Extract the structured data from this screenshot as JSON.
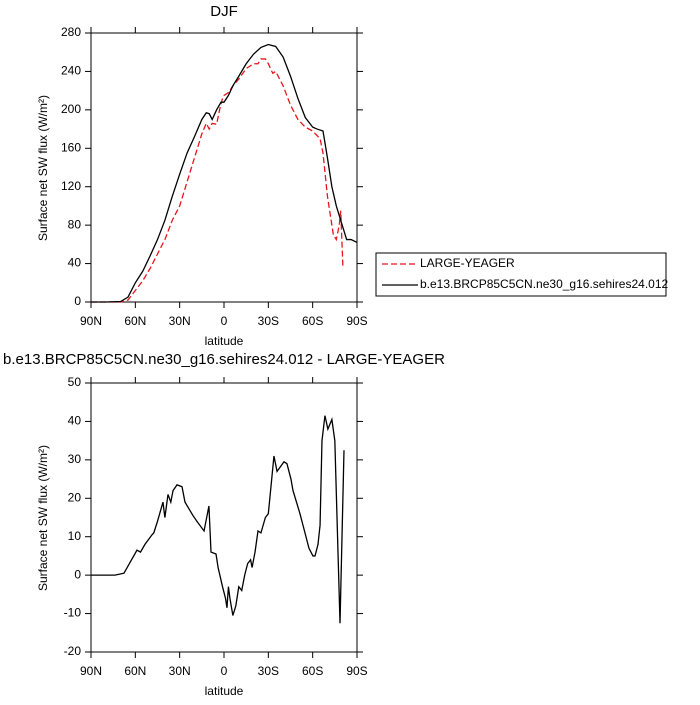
{
  "chart_data": [
    {
      "type": "line",
      "title": "DJF",
      "xlabel": "latitude",
      "ylabel": "Surface net SW flux (W/m²)",
      "xlim": [
        90,
        -90
      ],
      "ylim": [
        0,
        280
      ],
      "xticks": [
        {
          "value": 90,
          "label": "90N"
        },
        {
          "value": 60,
          "label": "60N"
        },
        {
          "value": 30,
          "label": "30N"
        },
        0,
        {
          "value": -30,
          "label": "30S"
        },
        {
          "value": -60,
          "label": "60S"
        },
        {
          "value": -90,
          "label": "90S"
        }
      ],
      "yticks": [
        0,
        40,
        80,
        120,
        160,
        200,
        240,
        280
      ],
      "legend": "outside right",
      "series": [
        {
          "name": "LARGE-YEAGER",
          "color": "#e8141c",
          "dash": "dashed",
          "x": [
            90,
            70,
            65,
            60,
            55,
            50,
            45,
            40,
            35,
            30,
            25,
            20,
            15,
            12,
            10,
            8,
            5,
            3,
            1,
            0,
            -3,
            -6,
            -10,
            -15,
            -20,
            -23,
            -25,
            -28,
            -30,
            -33,
            -35,
            -40,
            -45,
            -50,
            -55,
            -60,
            -65,
            -67,
            -70,
            -72,
            -74,
            -76,
            -78,
            -79,
            -80,
            -80.5
          ],
          "values": [
            0,
            0,
            2,
            12,
            22,
            35,
            50,
            65,
            85,
            100,
            125,
            150,
            175,
            186,
            180,
            186,
            185,
            200,
            212,
            215,
            218,
            225,
            232,
            243,
            248,
            248,
            253,
            253,
            248,
            238,
            240,
            225,
            205,
            190,
            182,
            178,
            170,
            155,
            110,
            90,
            70,
            65,
            80,
            95,
            55,
            35
          ]
        },
        {
          "name": "b.e13.BRCP85C5CN.ne30_g16.sehires24.012",
          "color": "#000000",
          "dash": "solid",
          "x": [
            90,
            80,
            70,
            65,
            60,
            55,
            50,
            45,
            40,
            35,
            30,
            25,
            20,
            15,
            12,
            10,
            8,
            5,
            2,
            0,
            -3,
            -6,
            -10,
            -15,
            -20,
            -25,
            -30,
            -35,
            -40,
            -45,
            -50,
            -55,
            -60,
            -63,
            -67,
            -70,
            -73,
            -76,
            -80,
            -83,
            -86,
            -90
          ],
          "values": [
            0,
            0,
            0.5,
            5,
            20,
            32,
            48,
            65,
            85,
            110,
            133,
            155,
            172,
            190,
            197,
            196,
            190,
            200,
            208,
            208,
            215,
            225,
            235,
            248,
            258,
            265,
            268,
            266,
            255,
            235,
            212,
            192,
            182,
            180,
            178,
            150,
            120,
            100,
            80,
            65,
            65,
            62
          ]
        }
      ]
    },
    {
      "type": "line",
      "title": "b.e13.BRCP85C5CN.ne30_g16.sehires24.012 - LARGE-YEAGER",
      "xlabel": "latitude",
      "ylabel": "Surface net SW flux (W/m²)",
      "xlim": [
        90,
        -90
      ],
      "ylim": [
        -20,
        50
      ],
      "xticks": [
        {
          "value": 90,
          "label": "90N"
        },
        {
          "value": 60,
          "label": "60N"
        },
        {
          "value": 30,
          "label": "30N"
        },
        0,
        {
          "value": -30,
          "label": "30S"
        },
        {
          "value": -60,
          "label": "60S"
        },
        {
          "value": -90,
          "label": "90S"
        }
      ],
      "yticks": [
        -20,
        -10,
        0,
        10,
        20,
        30,
        40,
        50
      ],
      "series": [
        {
          "color": "#000000",
          "dash": "solid",
          "x": [
            90,
            73.8,
            67.7,
            58.9,
            56.5,
            53.5,
            48.7,
            47.5,
            45,
            41.3,
            40,
            37.9,
            36,
            34.5,
            31.8,
            28.4,
            26.4,
            21,
            18.3,
            13.5,
            10.2,
            8.8,
            5.4,
            4,
            1,
            -1,
            -2,
            -3,
            -4,
            -6,
            -8,
            -10,
            -12,
            -14,
            -16,
            -18,
            -19,
            -21,
            -23,
            -25,
            -28,
            -30,
            -33.8,
            -35.9,
            -40.6,
            -42.6,
            -45.3,
            -46.7,
            -51.4,
            -54.8,
            -57.5,
            -60.2,
            -61.6,
            -63.6,
            -65,
            -66.3,
            -68.3,
            -70.3,
            -73,
            -75,
            -78.5,
            -81.2
          ],
          "values": [
            0,
            0,
            0.5,
            6.5,
            6,
            8,
            10.5,
            11,
            14,
            19,
            15,
            21,
            19,
            22,
            23.5,
            23,
            19,
            15.5,
            14,
            11.5,
            18,
            6,
            5.5,
            2,
            -3,
            -6,
            -8.5,
            -3,
            -6,
            -10.5,
            -8,
            -3,
            -4,
            0,
            3,
            4,
            2,
            6,
            11.5,
            11,
            15,
            16,
            31,
            27,
            29.5,
            29,
            25,
            22,
            16,
            11,
            7,
            5,
            5,
            8,
            13,
            35,
            41.5,
            38,
            40.5,
            35,
            -12.5,
            32.5
          ]
        }
      ]
    }
  ]
}
